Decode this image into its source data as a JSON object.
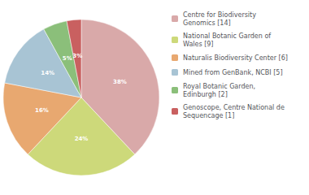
{
  "chart_data": {
    "type": "pie",
    "categories": [
      "Centre for Biodiversity\nGenomics [14]",
      "National Botanic Garden of\nWales [9]",
      "Naturalis Biodiversity Center [6]",
      "Mined from GenBank, NCBI [5]",
      "Royal Botanic Garden,\nEdinburgh [2]",
      "Genoscope, Centre National de\nSequencage [1]"
    ],
    "values": [
      38,
      24,
      16,
      14,
      5,
      3
    ],
    "value_labels": [
      "38%",
      "24%",
      "16%",
      "14%",
      "5%",
      "3%"
    ],
    "colors": [
      "#d9a9a9",
      "#cdd97a",
      "#e8a870",
      "#a8c4d4",
      "#8bbf7a",
      "#c96060"
    ],
    "data_labels": true,
    "legend": "right"
  }
}
